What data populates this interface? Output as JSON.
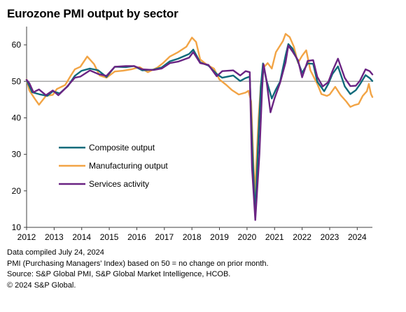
{
  "title": "Eurozone PMI output by sector",
  "notes": [
    "Data compiled July 24, 2024",
    "PMI (Purchasing Managers' Index) based on 50 = no change on prior month.",
    "Source: S&P Global PMI, S&P Global Market Intelligence, HCOB.",
    "© 2024 S&P Global."
  ],
  "chart_data": {
    "type": "line",
    "title": "Eurozone PMI output by sector",
    "xlabel": "",
    "ylabel": "",
    "xlim": [
      2012.0,
      2024.55
    ],
    "ylim": [
      10,
      65
    ],
    "x_ticks": [
      "2012",
      "2013",
      "2014",
      "2015",
      "2016",
      "2017",
      "2018",
      "2019",
      "2020",
      "2021",
      "2022",
      "2023",
      "2024"
    ],
    "y_ticks": [
      10,
      20,
      30,
      40,
      50,
      60
    ],
    "reference_line": 50,
    "grid": false,
    "legend_position": "lower-left",
    "series": [
      {
        "name": "Composite output",
        "color": "#0e6a7a",
        "points": [
          [
            2012.0,
            50.4
          ],
          [
            2012.2,
            47.0
          ],
          [
            2012.5,
            46.4
          ],
          [
            2012.75,
            46.0
          ],
          [
            2012.95,
            47.3
          ],
          [
            2013.2,
            46.7
          ],
          [
            2013.5,
            48.7
          ],
          [
            2013.75,
            51.5
          ],
          [
            2014.0,
            52.9
          ],
          [
            2014.3,
            53.5
          ],
          [
            2014.6,
            53.0
          ],
          [
            2014.9,
            51.2
          ],
          [
            2015.2,
            54.0
          ],
          [
            2015.6,
            53.9
          ],
          [
            2015.9,
            54.2
          ],
          [
            2016.2,
            53.0
          ],
          [
            2016.6,
            53.2
          ],
          [
            2016.9,
            53.8
          ],
          [
            2017.2,
            55.5
          ],
          [
            2017.5,
            56.2
          ],
          [
            2017.9,
            57.5
          ],
          [
            2018.05,
            58.7
          ],
          [
            2018.3,
            55.2
          ],
          [
            2018.6,
            54.3
          ],
          [
            2018.9,
            52.0
          ],
          [
            2019.1,
            51.0
          ],
          [
            2019.5,
            51.6
          ],
          [
            2019.75,
            50.1
          ],
          [
            2019.95,
            50.9
          ],
          [
            2020.1,
            51.3
          ],
          [
            2020.2,
            29.7
          ],
          [
            2020.3,
            13.6
          ],
          [
            2020.4,
            31.9
          ],
          [
            2020.5,
            48.5
          ],
          [
            2020.58,
            54.9
          ],
          [
            2020.7,
            50.4
          ],
          [
            2020.9,
            45.3
          ],
          [
            2021.05,
            47.8
          ],
          [
            2021.2,
            49.9
          ],
          [
            2021.4,
            57.1
          ],
          [
            2021.5,
            60.2
          ],
          [
            2021.65,
            59.0
          ],
          [
            2021.85,
            55.4
          ],
          [
            2022.0,
            52.3
          ],
          [
            2022.2,
            54.9
          ],
          [
            2022.4,
            54.8
          ],
          [
            2022.55,
            49.9
          ],
          [
            2022.8,
            47.3
          ],
          [
            2022.95,
            49.3
          ],
          [
            2023.1,
            52.0
          ],
          [
            2023.3,
            54.1
          ],
          [
            2023.55,
            48.6
          ],
          [
            2023.75,
            46.5
          ],
          [
            2023.95,
            47.6
          ],
          [
            2024.1,
            49.2
          ],
          [
            2024.3,
            51.7
          ],
          [
            2024.45,
            50.9
          ],
          [
            2024.55,
            50.1
          ]
        ]
      },
      {
        "name": "Manufacturing output",
        "color": "#f2a445",
        "points": [
          [
            2012.0,
            50.5
          ],
          [
            2012.1,
            47.5
          ],
          [
            2012.3,
            45.2
          ],
          [
            2012.45,
            43.6
          ],
          [
            2012.7,
            46.0
          ],
          [
            2012.95,
            46.3
          ],
          [
            2013.1,
            47.9
          ],
          [
            2013.4,
            49.0
          ],
          [
            2013.6,
            51.5
          ],
          [
            2013.75,
            53.3
          ],
          [
            2013.95,
            54.0
          ],
          [
            2014.2,
            56.8
          ],
          [
            2014.45,
            54.7
          ],
          [
            2014.65,
            51.6
          ],
          [
            2014.9,
            51.0
          ],
          [
            2015.2,
            52.7
          ],
          [
            2015.5,
            52.9
          ],
          [
            2015.8,
            53.3
          ],
          [
            2016.1,
            53.9
          ],
          [
            2016.4,
            52.5
          ],
          [
            2016.75,
            53.8
          ],
          [
            2016.95,
            55.0
          ],
          [
            2017.2,
            56.8
          ],
          [
            2017.5,
            58.0
          ],
          [
            2017.8,
            59.5
          ],
          [
            2018.0,
            62.0
          ],
          [
            2018.15,
            60.8
          ],
          [
            2018.3,
            56.0
          ],
          [
            2018.55,
            54.5
          ],
          [
            2018.8,
            53.5
          ],
          [
            2019.0,
            50.5
          ],
          [
            2019.25,
            49.0
          ],
          [
            2019.45,
            47.6
          ],
          [
            2019.7,
            46.4
          ],
          [
            2019.95,
            46.9
          ],
          [
            2020.05,
            47.4
          ],
          [
            2020.15,
            44.5
          ],
          [
            2020.28,
            18.4
          ],
          [
            2020.42,
            40.0
          ],
          [
            2020.5,
            49.0
          ],
          [
            2020.6,
            53.8
          ],
          [
            2020.75,
            55.0
          ],
          [
            2020.9,
            53.5
          ],
          [
            2021.05,
            58.0
          ],
          [
            2021.3,
            61.0
          ],
          [
            2021.4,
            63.0
          ],
          [
            2021.55,
            62.1
          ],
          [
            2021.7,
            59.5
          ],
          [
            2021.85,
            55.1
          ],
          [
            2022.0,
            57.0
          ],
          [
            2022.15,
            58.5
          ],
          [
            2022.3,
            53.0
          ],
          [
            2022.55,
            49.3
          ],
          [
            2022.7,
            46.5
          ],
          [
            2022.9,
            46.0
          ],
          [
            2023.0,
            46.4
          ],
          [
            2023.2,
            48.5
          ],
          [
            2023.4,
            46.2
          ],
          [
            2023.6,
            44.5
          ],
          [
            2023.75,
            43.0
          ],
          [
            2023.9,
            43.5
          ],
          [
            2024.05,
            43.8
          ],
          [
            2024.2,
            46.0
          ],
          [
            2024.35,
            47.3
          ],
          [
            2024.42,
            49.3
          ],
          [
            2024.5,
            46.5
          ],
          [
            2024.55,
            45.7
          ]
        ]
      },
      {
        "name": "Services activity",
        "color": "#6a2483",
        "points": [
          [
            2012.0,
            50.4
          ],
          [
            2012.1,
            49.5
          ],
          [
            2012.25,
            47.0
          ],
          [
            2012.45,
            47.8
          ],
          [
            2012.7,
            46.2
          ],
          [
            2012.95,
            47.5
          ],
          [
            2013.15,
            46.2
          ],
          [
            2013.45,
            48.4
          ],
          [
            2013.75,
            51.0
          ],
          [
            2013.95,
            51.3
          ],
          [
            2014.3,
            53.0
          ],
          [
            2014.6,
            52.0
          ],
          [
            2014.9,
            51.5
          ],
          [
            2015.2,
            54.0
          ],
          [
            2015.6,
            54.2
          ],
          [
            2015.9,
            54.2
          ],
          [
            2016.2,
            53.3
          ],
          [
            2016.6,
            53.1
          ],
          [
            2016.9,
            53.5
          ],
          [
            2017.2,
            55.0
          ],
          [
            2017.5,
            55.4
          ],
          [
            2017.9,
            56.5
          ],
          [
            2018.05,
            58.0
          ],
          [
            2018.3,
            55.0
          ],
          [
            2018.6,
            54.5
          ],
          [
            2018.9,
            51.4
          ],
          [
            2019.1,
            52.8
          ],
          [
            2019.5,
            53.0
          ],
          [
            2019.75,
            51.6
          ],
          [
            2019.95,
            52.8
          ],
          [
            2020.1,
            52.5
          ],
          [
            2020.18,
            26.4
          ],
          [
            2020.3,
            12.0
          ],
          [
            2020.45,
            30.0
          ],
          [
            2020.55,
            48.0
          ],
          [
            2020.6,
            54.7
          ],
          [
            2020.7,
            50.5
          ],
          [
            2020.85,
            41.5
          ],
          [
            2021.0,
            45.4
          ],
          [
            2021.2,
            49.6
          ],
          [
            2021.4,
            55.2
          ],
          [
            2021.5,
            59.8
          ],
          [
            2021.65,
            58.2
          ],
          [
            2021.85,
            55.8
          ],
          [
            2022.0,
            51.1
          ],
          [
            2022.2,
            55.6
          ],
          [
            2022.4,
            55.8
          ],
          [
            2022.55,
            51.2
          ],
          [
            2022.75,
            48.6
          ],
          [
            2022.95,
            49.8
          ],
          [
            2023.1,
            52.8
          ],
          [
            2023.3,
            56.2
          ],
          [
            2023.55,
            50.9
          ],
          [
            2023.75,
            48.7
          ],
          [
            2023.95,
            48.8
          ],
          [
            2024.1,
            50.2
          ],
          [
            2024.3,
            53.3
          ],
          [
            2024.45,
            52.8
          ],
          [
            2024.55,
            51.9
          ]
        ]
      }
    ]
  }
}
